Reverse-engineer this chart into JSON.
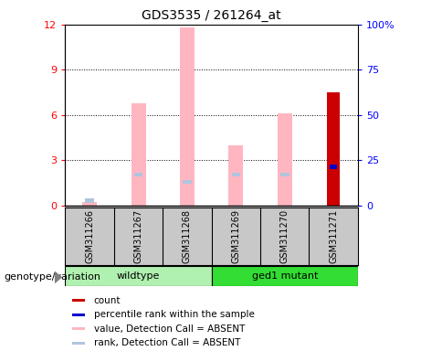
{
  "title": "GDS3535 / 261264_at",
  "samples": [
    "GSM311266",
    "GSM311267",
    "GSM311268",
    "GSM311269",
    "GSM311270",
    "GSM311271"
  ],
  "pink_bars": [
    0.22,
    6.8,
    11.8,
    4.0,
    6.1,
    0.0
  ],
  "blue_rank_bars": [
    0.32,
    2.05,
    1.55,
    2.05,
    2.05,
    0.0
  ],
  "red_bar_val": 7.5,
  "red_bar_idx": 5,
  "blue_sq_val": 2.55,
  "blue_sq_idx": 5,
  "ylim_left": [
    0,
    12
  ],
  "yticks_left": [
    0,
    3,
    6,
    9,
    12
  ],
  "ytick_labels_left": [
    "0",
    "3",
    "6",
    "9",
    "12"
  ],
  "ytick_labels_right": [
    "0",
    "25",
    "50",
    "75",
    "100%"
  ],
  "pink_color": "#ffb6c1",
  "light_blue_color": "#b0c4de",
  "blue_color": "#0000cc",
  "red_color": "#cc0000",
  "bg_color": "#ffffff",
  "label_box_color": "#c8c8c8",
  "wt_color": "#b0f0b0",
  "mut_color": "#33dd33",
  "legend_items": [
    {
      "label": "count",
      "color": "#cc0000"
    },
    {
      "label": "percentile rank within the sample",
      "color": "#0000cc"
    },
    {
      "label": "value, Detection Call = ABSENT",
      "color": "#ffb6c1"
    },
    {
      "label": "rank, Detection Call = ABSENT",
      "color": "#b0c4de"
    }
  ],
  "group_label": "genotype/variation",
  "wt_label": "wildtype",
  "mut_label": "ged1 mutant"
}
